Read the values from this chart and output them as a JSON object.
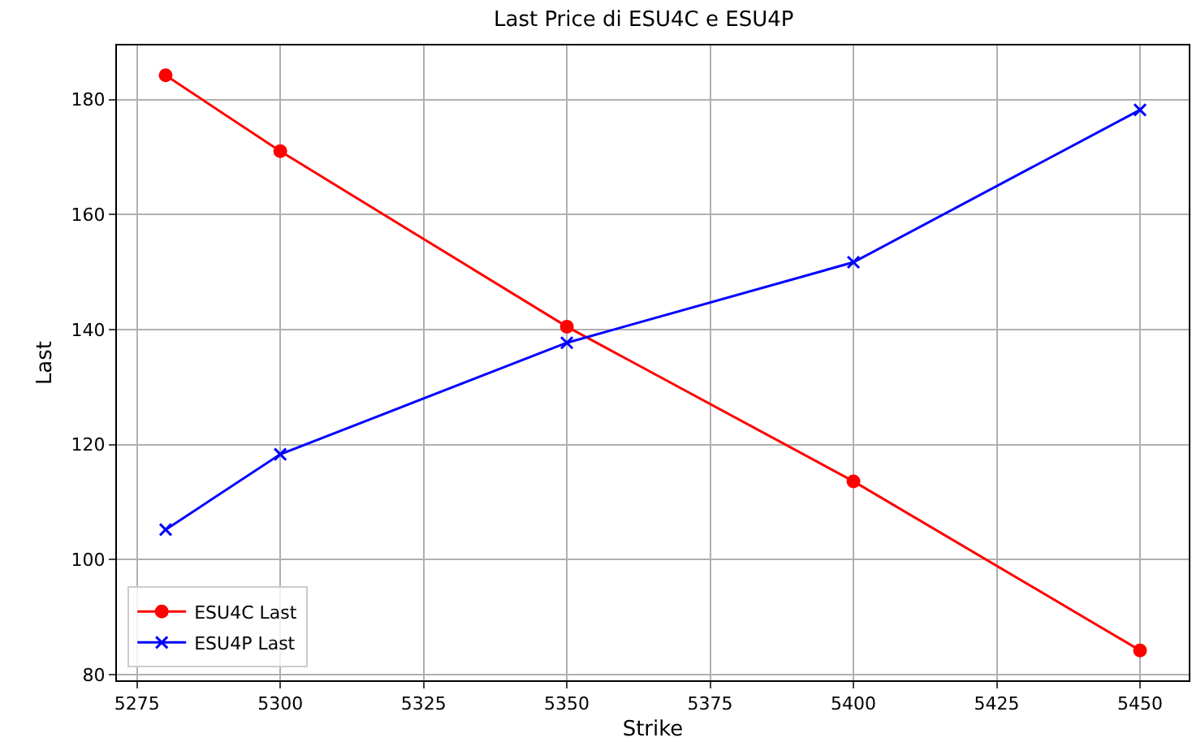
{
  "chart_data": {
    "type": "line",
    "title": "Last Price di ESU4C e ESU4P",
    "xlabel": "Strike",
    "ylabel": "Last",
    "x": [
      5280,
      5300,
      5350,
      5400,
      5450
    ],
    "series": [
      {
        "name": "ESU4C Last",
        "color": "#ff0000",
        "marker": "circle",
        "values": [
          184.2,
          171,
          140.5,
          113.6,
          84.2
        ]
      },
      {
        "name": "ESU4P Last",
        "color": "#0000ff",
        "marker": "cross",
        "values": [
          105.2,
          118.3,
          137.7,
          151.7,
          178.2
        ]
      }
    ],
    "xlim": [
      5271.5,
      5458.5
    ],
    "xticks": [
      5275,
      5300,
      5325,
      5350,
      5375,
      5400,
      5425,
      5450
    ],
    "ylim": [
      79,
      189.4
    ],
    "yticks": [
      80,
      100,
      120,
      140,
      160,
      180
    ],
    "grid": true,
    "legend": "bottom left",
    "line_style": "solid"
  }
}
